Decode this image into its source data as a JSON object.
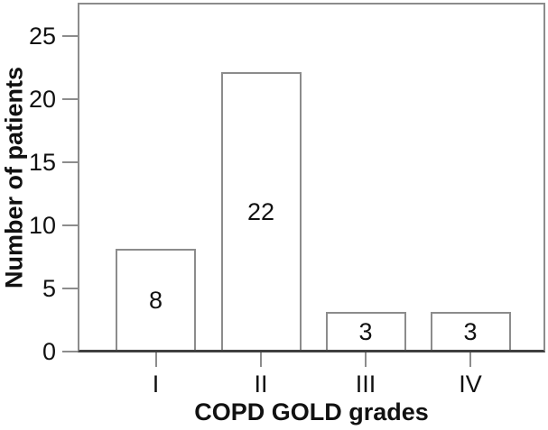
{
  "figure": {
    "background": "#ffffff",
    "text_color": "#111111",
    "axis_color": "#8c8c8c",
    "baseline_color": "#3f3f3f"
  },
  "chart_data": {
    "type": "bar",
    "title": "",
    "xlabel": "COPD GOLD grades",
    "ylabel": "Number of patients",
    "categories": [
      "I",
      "II",
      "III",
      "IV"
    ],
    "values": [
      8,
      22,
      3,
      3
    ],
    "bar_labels": [
      "8",
      "22",
      "3",
      "3"
    ],
    "yticks": [
      0,
      5,
      10,
      15,
      20,
      25
    ],
    "ylim": [
      0,
      27.5
    ],
    "grid": false,
    "legend": null,
    "bar_fill": "#ffffff",
    "bar_border": "#8c8c8c",
    "label_position": "inside-center"
  }
}
